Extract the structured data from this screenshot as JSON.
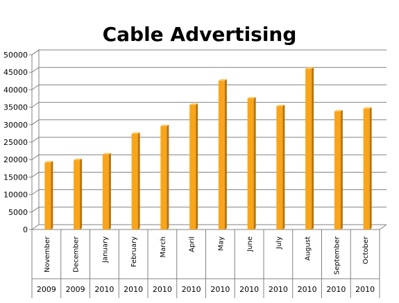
{
  "chart_data": {
    "type": "bar",
    "title": "Cable Advertising",
    "categories": [
      "November",
      "December",
      "January",
      "February",
      "March",
      "April",
      "May",
      "June",
      "July",
      "August",
      "September",
      "October"
    ],
    "years": [
      "2009",
      "2009",
      "2010",
      "2010",
      "2010",
      "2010",
      "2010",
      "2010",
      "2010",
      "2010",
      "2010",
      "2010"
    ],
    "values": [
      19200,
      19900,
      21500,
      27400,
      29600,
      35700,
      42600,
      37500,
      35300,
      46000,
      33800,
      34600
    ],
    "y_ticks": [
      "0",
      "5000",
      "10000",
      "15000",
      "20000",
      "25000",
      "30000",
      "35000",
      "40000",
      "45000",
      "50000"
    ],
    "ylim": [
      0,
      50000
    ],
    "grid": true,
    "colors": {
      "bar_front": "#f9a51b",
      "bar_side": "#b8740a",
      "bar_top": "#fcc860",
      "grid": "#808080",
      "wall": "#ffffff"
    }
  }
}
